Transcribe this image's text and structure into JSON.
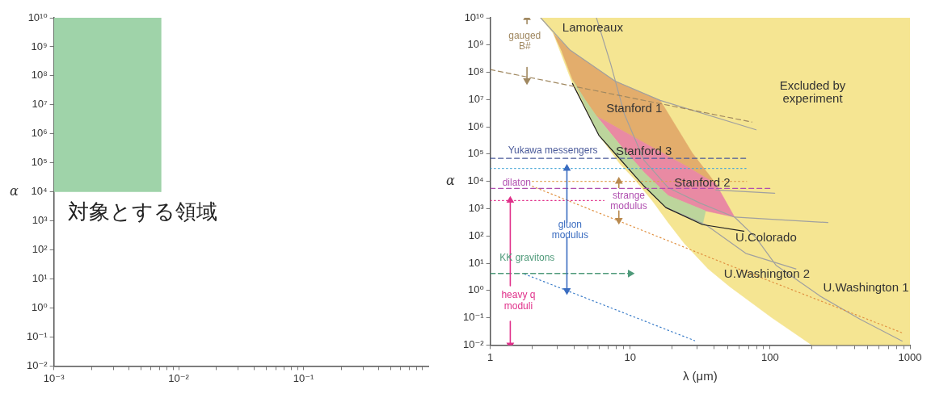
{
  "chart_data": [
    {
      "type": "area",
      "ylabel": "α",
      "log": "xy",
      "xlim": [
        0.001,
        1
      ],
      "ylim": [
        0.01,
        10000000000
      ],
      "xticks": [
        {
          "value": 0.001,
          "label": "10⁻³"
        },
        {
          "value": 0.002,
          "label": null
        },
        {
          "value": 0.003,
          "label": null
        },
        {
          "value": 0.004,
          "label": null
        },
        {
          "value": 0.005,
          "label": null
        },
        {
          "value": 0.006,
          "label": null
        },
        {
          "value": 0.007,
          "label": null
        },
        {
          "value": 0.008,
          "label": null
        },
        {
          "value": 0.009,
          "label": null
        },
        {
          "value": 0.01,
          "label": "10⁻²"
        },
        {
          "value": 0.02,
          "label": null
        },
        {
          "value": 0.03,
          "label": null
        },
        {
          "value": 0.04,
          "label": null
        },
        {
          "value": 0.05,
          "label": null
        },
        {
          "value": 0.06,
          "label": null
        },
        {
          "value": 0.07,
          "label": null
        },
        {
          "value": 0.08,
          "label": null
        },
        {
          "value": 0.09,
          "label": null
        },
        {
          "value": 0.1,
          "label": "10⁻¹"
        },
        {
          "value": 0.2,
          "label": null
        },
        {
          "value": 0.3,
          "label": null
        },
        {
          "value": 0.4,
          "label": null
        },
        {
          "value": 0.5,
          "label": null
        },
        {
          "value": 0.6,
          "label": null
        },
        {
          "value": 0.7,
          "label": null
        },
        {
          "value": 0.8,
          "label": null
        },
        {
          "value": 0.9,
          "label": null
        }
      ],
      "yticks": [
        {
          "value": 0.01,
          "label": "10⁻²"
        },
        {
          "value": 0.1,
          "label": "10⁻¹"
        },
        {
          "value": 1,
          "label": "10⁰"
        },
        {
          "value": 10,
          "label": "10¹"
        },
        {
          "value": 100,
          "label": "10²"
        },
        {
          "value": 1000,
          "label": "10³"
        },
        {
          "value": 10000,
          "label": "10⁴"
        },
        {
          "value": 100000,
          "label": "10⁵"
        },
        {
          "value": 1000000,
          "label": "10⁶"
        },
        {
          "value": 10000000,
          "label": "10⁷"
        },
        {
          "value": 100000000,
          "label": "10⁸"
        },
        {
          "value": 1000000000,
          "label": "10⁹"
        },
        {
          "value": 10000000000,
          "label": "10¹⁰"
        }
      ],
      "series": [
        {
          "type": "area",
          "color": "#9fd3a9",
          "x": [
            0.001,
            0.001,
            0.0072,
            0.0072
          ],
          "values": [
            10000,
            10000000000,
            10000000000,
            10000
          ]
        }
      ],
      "annotations": [
        "対象とする領域"
      ]
    },
    {
      "type": "area",
      "xlabel": "λ (μm)",
      "ylabel": "α",
      "log": "xy",
      "xlim": [
        1,
        1000
      ],
      "ylim": [
        0.01,
        10000000000
      ],
      "xticks": [
        1,
        {
          "value": 2,
          "label": null
        },
        {
          "value": 3,
          "label": null
        },
        {
          "value": 4,
          "label": null
        },
        {
          "value": 5,
          "label": null
        },
        {
          "value": 6,
          "label": null
        },
        {
          "value": 7,
          "label": null
        },
        {
          "value": 8,
          "label": null
        },
        {
          "value": 9,
          "label": null
        },
        10,
        {
          "value": 20,
          "label": null
        },
        {
          "value": 30,
          "label": null
        },
        {
          "value": 40,
          "label": null
        },
        {
          "value": 50,
          "label": null
        },
        {
          "value": 60,
          "label": null
        },
        {
          "value": 70,
          "label": null
        },
        {
          "value": 80,
          "label": null
        },
        {
          "value": 90,
          "label": null
        },
        100,
        {
          "value": 200,
          "label": null
        },
        {
          "value": 300,
          "label": null
        },
        {
          "value": 400,
          "label": null
        },
        {
          "value": 500,
          "label": null
        },
        {
          "value": 600,
          "label": null
        },
        {
          "value": 700,
          "label": null
        },
        {
          "value": 800,
          "label": null
        },
        {
          "value": 900,
          "label": null
        },
        1000
      ],
      "yticks": [
        {
          "value": 0.01,
          "label": "10⁻²"
        },
        {
          "value": 0.1,
          "label": "10⁻¹"
        },
        {
          "value": 1,
          "label": "10⁰"
        },
        {
          "value": 10,
          "label": "10¹"
        },
        {
          "value": 100,
          "label": "10²"
        },
        {
          "value": 1000,
          "label": "10³"
        },
        {
          "value": 10000,
          "label": "10⁴"
        },
        {
          "value": 100000,
          "label": "10⁵"
        },
        {
          "value": 1000000,
          "label": "10⁶"
        },
        {
          "value": 10000000,
          "label": "10⁷"
        },
        {
          "value": 100000000,
          "label": "10⁸"
        },
        {
          "value": 1000000000,
          "label": "10⁹"
        },
        {
          "value": 10000000000,
          "label": "10¹⁰"
        }
      ],
      "series": [
        {
          "type": "area",
          "color": "#f5e592",
          "x": [
            2.29,
            2.82,
            3.87,
            5.97,
            8.51,
            10.6,
            14.4,
            18.7,
            24.3,
            36.1,
            51.4,
            103,
            199,
            1000,
            1000
          ],
          "values": [
            10000000000,
            2700000000,
            39000000,
            490000,
            42000,
            13000,
            1950,
            310,
            54,
            6.2,
            1.4,
            0.1,
            0.01,
            0.01,
            10000000000
          ]
        },
        {
          "type": "area",
          "color": "#e3ad6c",
          "x": [
            2.82,
            3.72,
            7.77,
            16.4,
            27.8,
            41,
            25.3,
            12.6,
            5.74,
            4.71,
            3.87,
            3.26
          ],
          "values": [
            2700000000,
            650000000,
            48000000,
            9300000,
            110000,
            8100,
            36000,
            260000,
            2500000,
            10700000,
            54000000,
            540000000
          ]
        },
        {
          "type": "area",
          "color": "#e98aa3",
          "x": [
            5.74,
            12.6,
            25.3,
            41,
            55.8,
            34.6,
            18.7,
            12.6,
            8.51
          ],
          "values": [
            2500000,
            260000,
            36000,
            8100,
            490,
            830,
            3000,
            21000,
            210000
          ]
        },
        {
          "type": "area",
          "color": "#bcd59c",
          "x": [
            3.87,
            4.71,
            5.74,
            8.51,
            12.6,
            18.7,
            34.6,
            32.9,
            18,
            12.6,
            5.97
          ],
          "values": [
            54000000,
            10700000,
            2500000,
            210000,
            21000,
            3000,
            830,
            260,
            1100,
            6600,
            490000
          ]
        },
        {
          "type": "line",
          "color": "#a0a0a0",
          "line_style": "solid",
          "x": [
            2.29,
            3.72,
            7.77,
            16.4,
            79.4
          ],
          "values": [
            10000000000,
            650000000,
            48000000,
            9300000,
            780000
          ]
        },
        {
          "type": "line",
          "color": "#a0a0a0",
          "line_style": "solid",
          "x": [
            5.74,
            7.26,
            9.1,
            12.6,
            18.7,
            31.6,
            55.8,
            79.4,
            110,
            227,
            438,
            879
          ],
          "values": [
            10000000000,
            200000000,
            2900000,
            58000,
            5900,
            1600,
            490,
            85,
            8.5,
            0.63,
            0.089,
            0.014
          ]
        },
        {
          "type": "line",
          "color": "#a0a0a0",
          "line_style": "solid",
          "x": [
            18,
            34.6,
            67,
            153
          ],
          "values": [
            1100,
            260,
            23,
            6.2
          ]
        },
        {
          "type": "line",
          "color": "#a0a0a0",
          "line_style": "solid",
          "x": [
            55.8,
            259
          ],
          "values": [
            490,
            310
          ]
        },
        {
          "type": "line",
          "color": "#a0a0a0",
          "line_style": "solid",
          "x": [
            41,
            108
          ],
          "values": [
            4800,
            3700
          ]
        },
        {
          "type": "line",
          "color": "#222222",
          "line_style": "solid",
          "x": [
            3.87,
            5.97,
            12.6,
            18,
            32.9,
            65
          ],
          "values": [
            39000000,
            490000,
            6600,
            1100,
            260,
            150
          ]
        },
        {
          "type": "line",
          "color": "#a08860",
          "line_style": "dashed",
          "x": [
            1,
            74
          ],
          "values": [
            126000000,
            1500000
          ]
        },
        {
          "type": "line",
          "color": "#4a5a9a",
          "line_style": "dashed",
          "x": [
            1,
            68
          ],
          "values": [
            70000,
            70000
          ]
        },
        {
          "type": "line",
          "color": "#4aa8d8",
          "line_style": "dotted",
          "x": [
            1,
            68
          ],
          "values": [
            30000,
            30000
          ]
        },
        {
          "type": "line",
          "color": "#e0a050",
          "line_style": "dotted",
          "x": [
            2,
            68
          ],
          "values": [
            10000,
            10000
          ]
        },
        {
          "type": "line",
          "color": "#b04fb0",
          "line_style": "dashed",
          "x": [
            1,
            100
          ],
          "values": [
            5500,
            5500
          ]
        },
        {
          "type": "line",
          "color": "#e0308a",
          "line_style": "dotted",
          "x": [
            1,
            6.5
          ],
          "values": [
            2000,
            2000
          ]
        },
        {
          "type": "line",
          "color": "#e09040",
          "line_style": "dotted",
          "x": [
            2,
            47,
            880
          ],
          "values": [
            6600,
            10,
            0.028
          ]
        },
        {
          "type": "line",
          "color": "#3a7cc8",
          "line_style": "dotted",
          "x": [
            1.76,
            28.9
          ],
          "values": [
            4,
            0.0145
          ]
        },
        {
          "type": "line",
          "color": "#4f9a7a",
          "line_style": "dashed",
          "marker": "triangle",
          "x": [
            1,
            10
          ],
          "values": [
            4.2,
            4.2
          ]
        },
        {
          "type": "line",
          "color": "#a08860",
          "line_style": "solid",
          "marker": "triangle",
          "x": [
            1.83,
            1.83
          ],
          "values": [
            6000000000,
            10000000000
          ]
        },
        {
          "type": "line",
          "color": "#a08860",
          "line_style": "solid",
          "marker": "triangle",
          "x": [
            1.83,
            1.83
          ],
          "values": [
            150000000,
            50000000
          ]
        },
        {
          "type": "line",
          "color": "#e0308a",
          "line_style": "solid",
          "marker": "triangle",
          "x": [
            1.39,
            1.39
          ],
          "values": [
            1.5,
            2000
          ]
        },
        {
          "type": "line",
          "color": "#e0308a",
          "line_style": "solid",
          "marker": "triangle",
          "x": [
            1.39,
            1.39
          ],
          "values": [
            0.074,
            0.01
          ]
        },
        {
          "type": "line",
          "color": "#3a6cc0",
          "line_style": "solid",
          "marker": "triangle",
          "x": [
            3.53,
            3.53
          ],
          "values": [
            310,
            30000
          ]
        },
        {
          "type": "line",
          "color": "#3a6cc0",
          "line_style": "solid",
          "marker": "triangle",
          "x": [
            3.53,
            3.53
          ],
          "values": [
            85,
            1
          ]
        },
        {
          "type": "line",
          "color": "#b98a4f",
          "line_style": "solid",
          "marker": "triangle",
          "x": [
            8.3,
            8.3
          ],
          "values": [
            5900,
            10000
          ]
        },
        {
          "type": "line",
          "color": "#b98a4f",
          "line_style": "solid",
          "marker": "triangle",
          "x": [
            8.3,
            8.3
          ],
          "values": [
            830,
            380
          ]
        }
      ],
      "annotations": [
        "Lamoreaux",
        "Excluded by\nexperiment",
        "Stanford 1",
        "Stanford 3",
        "Stanford 2",
        "U.Colorado",
        "U.Washington 2",
        "U.Washington 1",
        "gauged\nB#",
        "Yukawa messengers",
        "dilaton",
        "strange\nmodulus",
        "gluon\nmodulus",
        "KK gravitons",
        "heavy q\nmoduli"
      ]
    }
  ]
}
